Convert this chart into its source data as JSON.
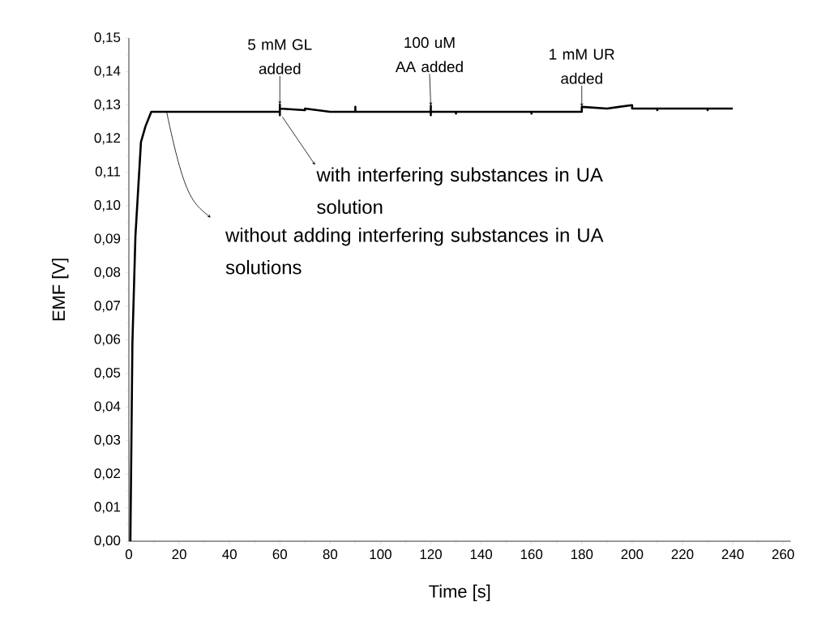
{
  "chart_data": {
    "type": "line",
    "xlabel": "Time [s]",
    "ylabel": "EMF [V]",
    "x": [
      0.6,
      1.4,
      2.6,
      4.8,
      6.6,
      8.9,
      60,
      60,
      60,
      60,
      70,
      70,
      80,
      90,
      90,
      90,
      120,
      120,
      120,
      120,
      130,
      130,
      130,
      160,
      160,
      160,
      180,
      180,
      190,
      200,
      200,
      210,
      210,
      210,
      230,
      230,
      230,
      240
    ],
    "values": [
      0,
      0.059,
      0.091,
      0.119,
      0.1237,
      0.128,
      0.128,
      0.1302,
      0.127,
      0.129,
      0.1285,
      0.129,
      0.128,
      0.128,
      0.1295,
      0.128,
      0.128,
      0.1298,
      0.127,
      0.128,
      0.128,
      0.1275,
      0.128,
      0.128,
      0.1275,
      0.128,
      0.128,
      0.1295,
      0.129,
      0.13,
      0.129,
      0.129,
      0.1285,
      0.129,
      0.129,
      0.1285,
      0.129,
      0.129
    ],
    "color": "#000000",
    "marker": "none",
    "line_style": "solid",
    "xlim": [
      0,
      263
    ],
    "ylim": [
      0,
      0.15
    ],
    "xticks": [
      0,
      20,
      40,
      60,
      80,
      100,
      120,
      140,
      160,
      180,
      200,
      220,
      240,
      260
    ],
    "yticks": [
      {
        "value": 0,
        "label": "0,00"
      },
      {
        "value": 0.01,
        "label": "0,01"
      },
      {
        "value": 0.02,
        "label": "0,02"
      },
      {
        "value": 0.03,
        "label": "0,03"
      },
      {
        "value": 0.04,
        "label": "0,04"
      },
      {
        "value": 0.05,
        "label": "0,05"
      },
      {
        "value": 0.06,
        "label": "0,06"
      },
      {
        "value": 0.07,
        "label": "0,07"
      },
      {
        "value": 0.08,
        "label": "0,08"
      },
      {
        "value": 0.09,
        "label": "0,09"
      },
      {
        "value": 0.1,
        "label": "0,10"
      },
      {
        "value": 0.11,
        "label": "0,11"
      },
      {
        "value": 0.12,
        "label": "0,12"
      },
      {
        "value": 0.13,
        "label": "0,13"
      },
      {
        "value": 0.14,
        "label": "0,14"
      },
      {
        "value": 0.15,
        "label": "0,15"
      }
    ],
    "annotations": [
      {
        "text": "5 mM GL added",
        "x": 60,
        "y": 0.1302
      },
      {
        "text": "100 uM AA added",
        "x": 120,
        "y": 0.1298
      },
      {
        "text": "1 mM UR added",
        "x": 180,
        "y": 0.1295
      },
      {
        "text": "with interfering substances in UA solution",
        "x": 61,
        "y": 0.127
      },
      {
        "text": "without adding interfering substances in UA solutions",
        "x": 15,
        "y": 0.128
      }
    ],
    "grid": false
  }
}
